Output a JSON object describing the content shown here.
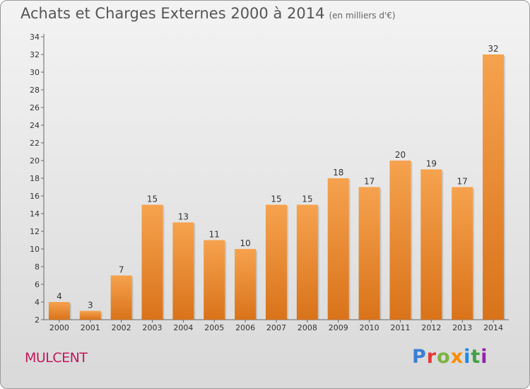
{
  "header": {
    "title": "Achats et Charges Externes 2000 à 2014",
    "unit": "(en milliers d'€)"
  },
  "footer": {
    "commune": "MULCENT",
    "brand": "Proxiti",
    "brand_colors": [
      "#3a7fd5",
      "#e53935",
      "#7cb342",
      "#fb8c00",
      "#1e88e5",
      "#43a047",
      "#8e24aa"
    ]
  },
  "chart_data": {
    "type": "bar",
    "categories": [
      "2000",
      "2001",
      "2002",
      "2003",
      "2004",
      "2005",
      "2006",
      "2007",
      "2008",
      "2009",
      "2010",
      "2011",
      "2012",
      "2013",
      "2014"
    ],
    "values": [
      4,
      3,
      7,
      15,
      13,
      11,
      10,
      15,
      15,
      18,
      17,
      20,
      19,
      17,
      32
    ],
    "ylim": [
      2,
      34
    ],
    "yticks": [
      2,
      4,
      6,
      8,
      10,
      12,
      14,
      16,
      18,
      20,
      22,
      24,
      26,
      28,
      30,
      32,
      34
    ],
    "grid": false,
    "data_labels": true,
    "bar_color_light": "#f6a24e",
    "bar_color_dark": "#d9731a"
  }
}
